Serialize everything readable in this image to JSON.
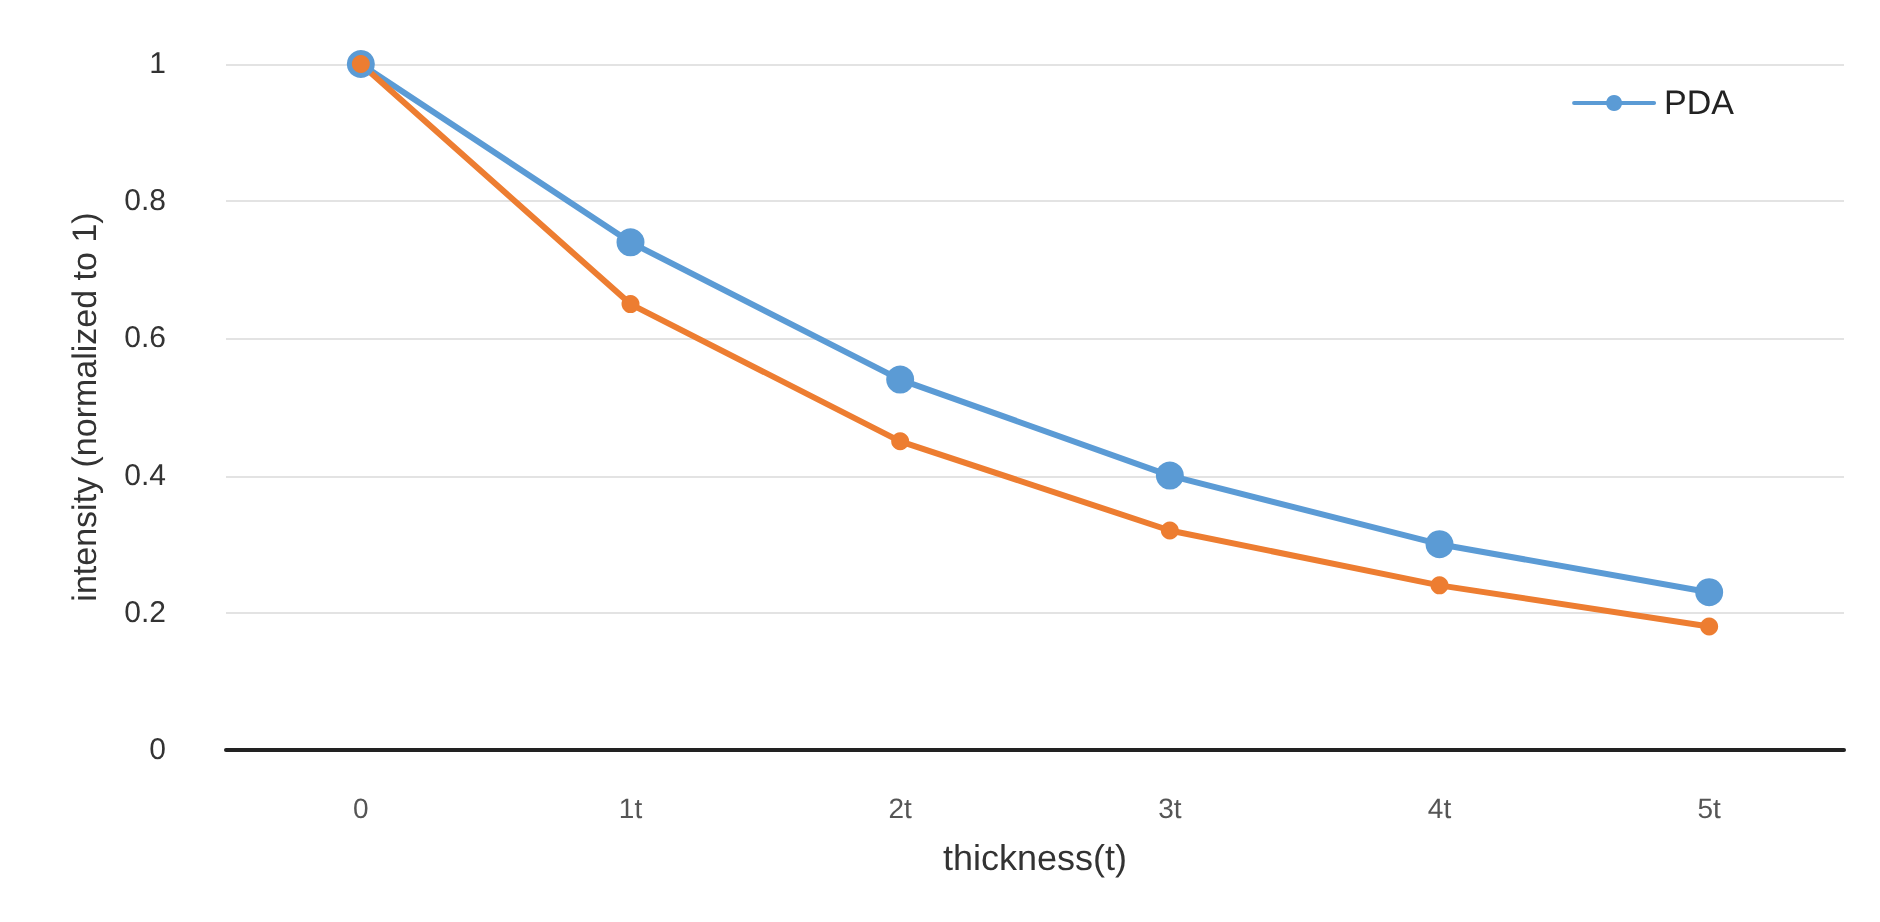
{
  "chart_data": {
    "type": "line",
    "xlabel": "thickness(t)",
    "ylabel": "intensity (normalized to 1)",
    "categories": [
      "0",
      "1t",
      "2t",
      "3t",
      "4t",
      "5t"
    ],
    "series": [
      {
        "name": "PDA",
        "color": "#5b9bd5",
        "values": [
          1,
          0.74,
          0.54,
          0.4,
          0.3,
          0.23
        ]
      },
      {
        "color": "#ed7d31",
        "values": [
          1,
          0.65,
          0.45,
          0.32,
          0.24,
          0.18
        ]
      }
    ],
    "ylim": [
      0,
      1
    ],
    "yticks": [
      0,
      0.2,
      0.4,
      0.6,
      0.8,
      1
    ],
    "grid": "y",
    "legend": "top right",
    "marker": "circle",
    "line_style": "solid"
  }
}
